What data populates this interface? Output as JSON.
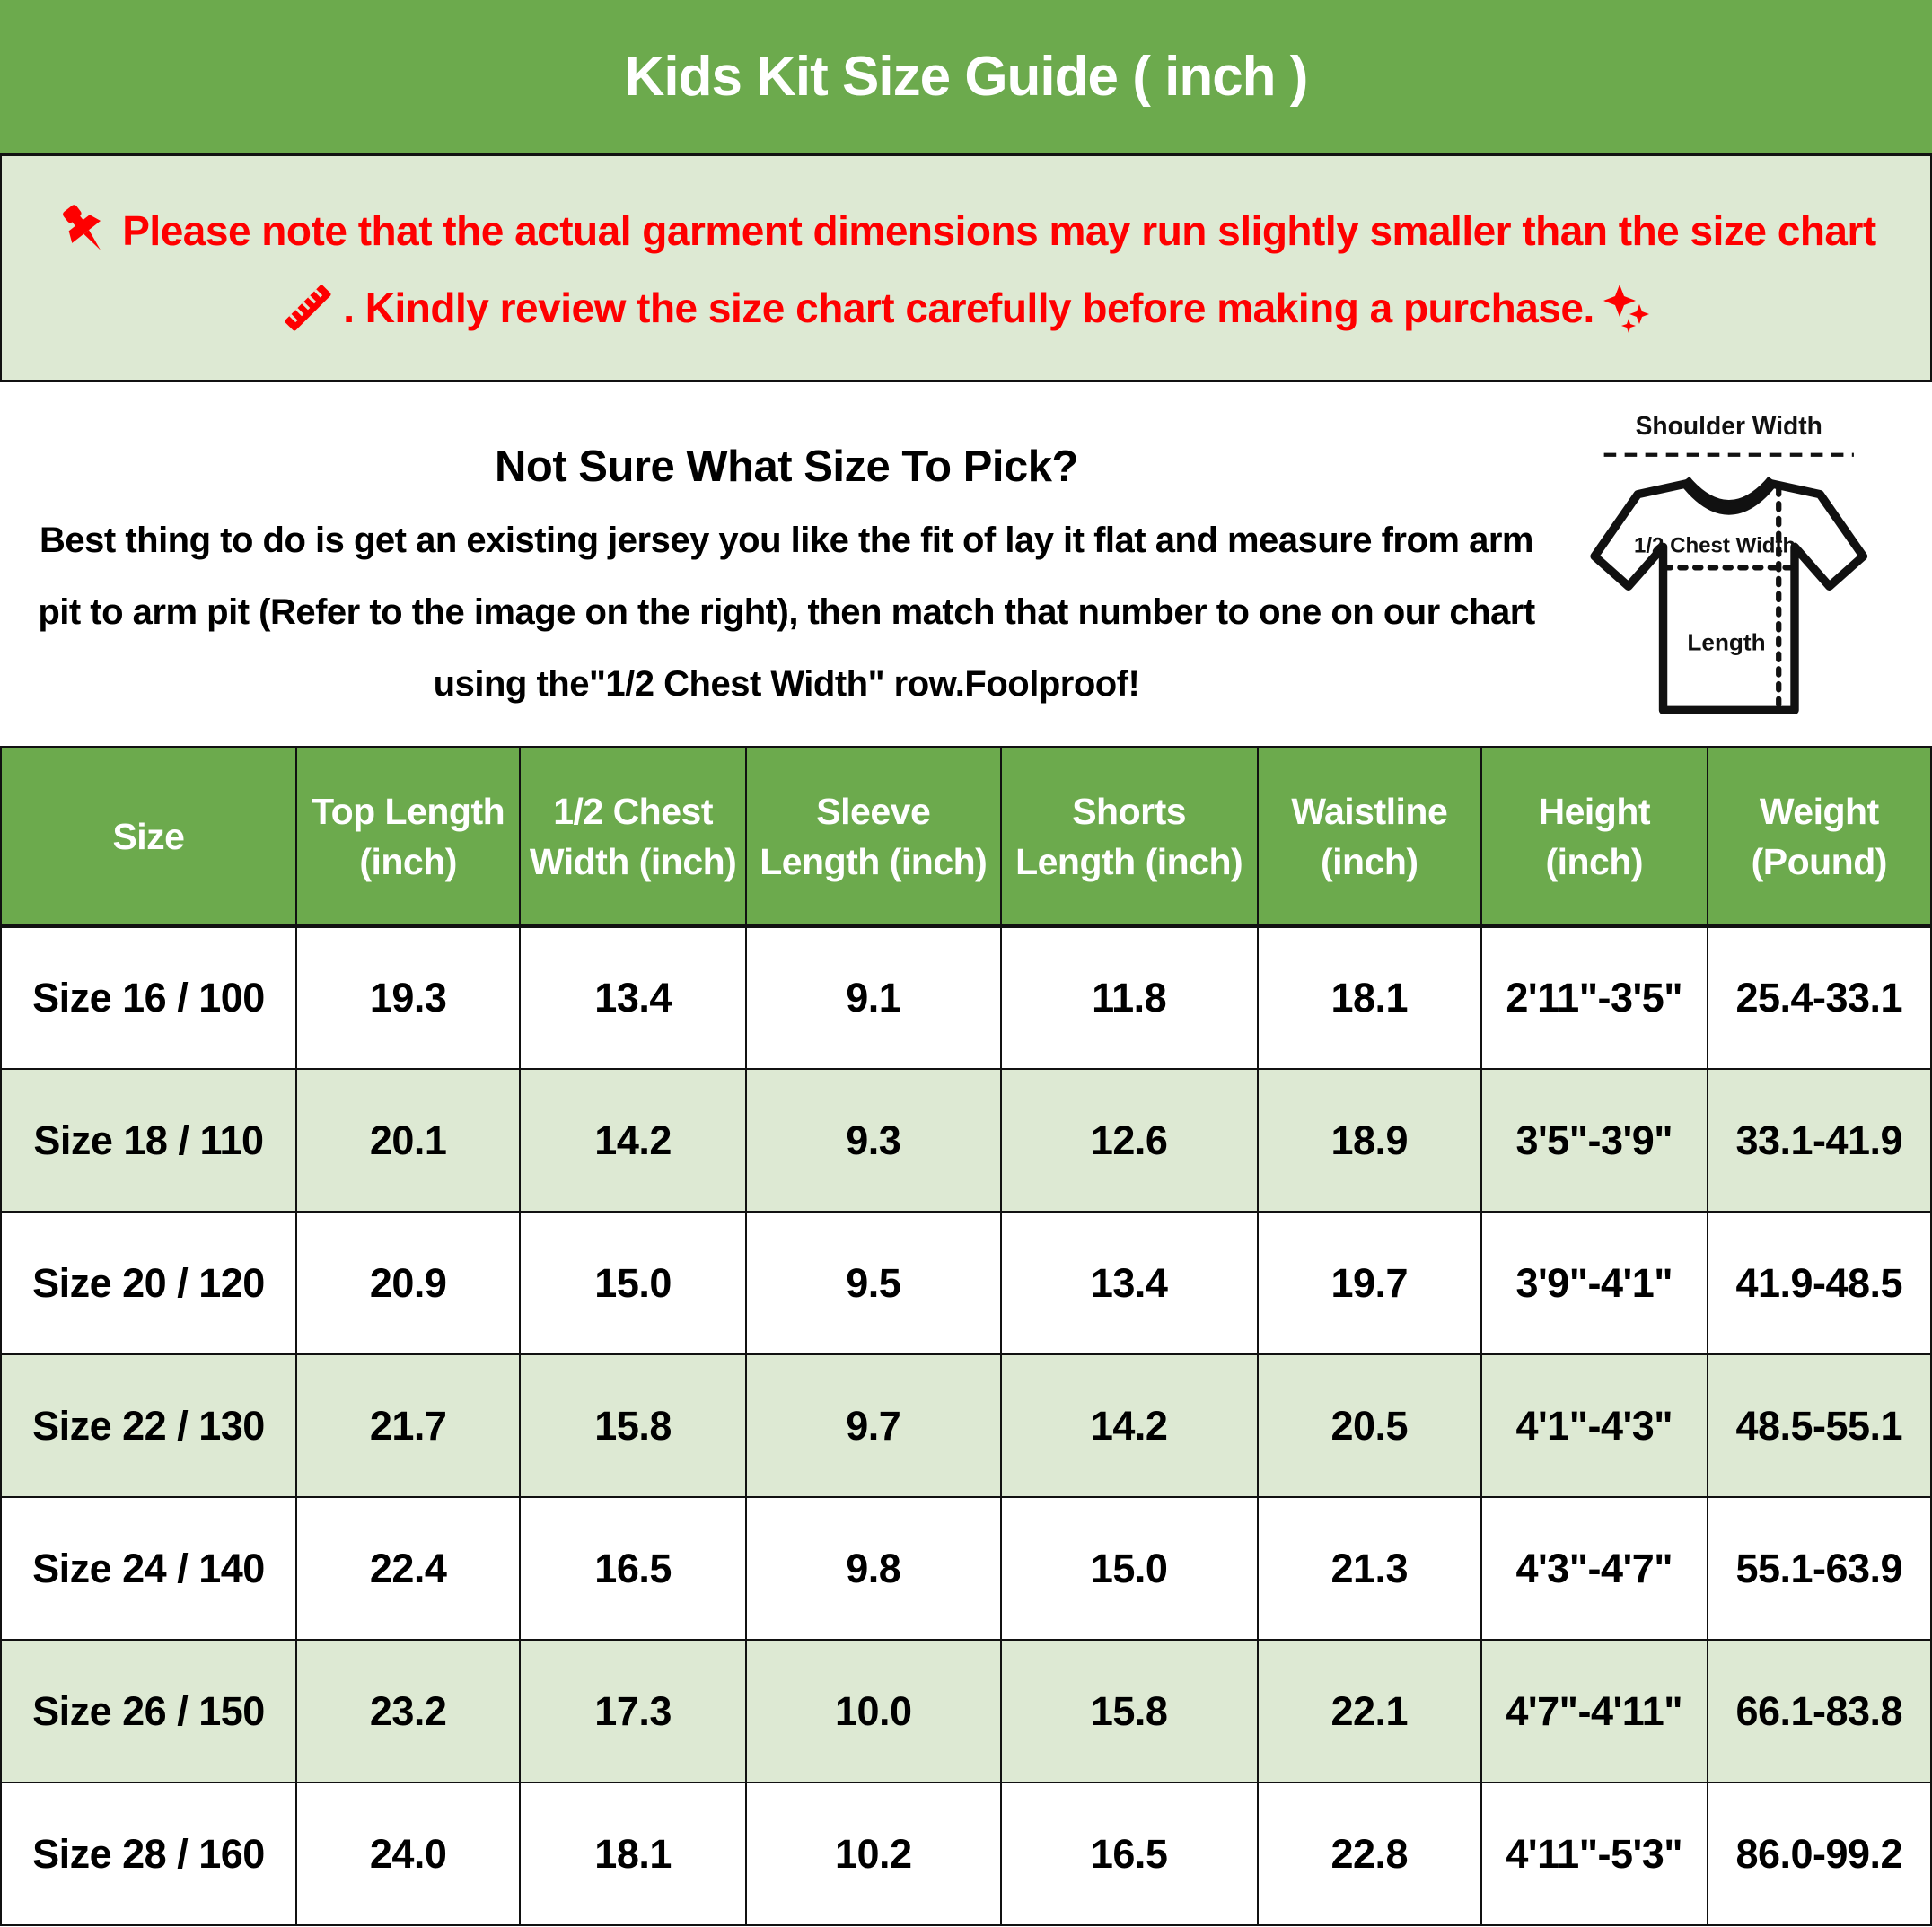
{
  "title": "Kids Kit Size Guide ( inch )",
  "notice": {
    "line1": "Please note that the actual garment dimensions may run slightly smaller than the size chart",
    "line2": ". Kindly review the size chart carefully before making a purchase.",
    "pin_icon": "pushpin-icon",
    "ruler_icon": "ruler-icon",
    "sparkles_icon": "sparkles-icon"
  },
  "guide": {
    "heading": "Not Sure What Size To Pick?",
    "lines": [
      "Best thing to do is get an existing jersey you like the fit of lay it flat and measure from arm",
      "pit to arm pit (Refer to the image on the right), then match that number to one on our chart",
      "using the\"1/2 Chest Width\" row.Foolproof!"
    ]
  },
  "diagram": {
    "shoulder_label": "Shoulder Width",
    "chest_label": "1/2 Chest Width",
    "length_label": "Length"
  },
  "table": {
    "headers": [
      [
        "Size"
      ],
      [
        "Top Length",
        "(inch)"
      ],
      [
        "1/2 Chest",
        "Width (inch)"
      ],
      [
        "Sleeve",
        "Length (inch)"
      ],
      [
        "Shorts",
        "Length (inch)"
      ],
      [
        "Waistline",
        "(inch)"
      ],
      [
        "Height",
        "(inch)"
      ],
      [
        "Weight",
        "(Pound)"
      ]
    ],
    "rows": [
      [
        "Size 16 / 100",
        "19.3",
        "13.4",
        "9.1",
        "11.8",
        "18.1",
        "2'11\"-3'5\"",
        "25.4-33.1"
      ],
      [
        "Size 18 / 110",
        "20.1",
        "14.2",
        "9.3",
        "12.6",
        "18.9",
        "3'5\"-3'9\"",
        "33.1-41.9"
      ],
      [
        "Size 20 / 120",
        "20.9",
        "15.0",
        "9.5",
        "13.4",
        "19.7",
        "3'9\"-4'1\"",
        "41.9-48.5"
      ],
      [
        "Size 22 / 130",
        "21.7",
        "15.8",
        "9.7",
        "14.2",
        "20.5",
        "4'1\"-4'3\"",
        "48.5-55.1"
      ],
      [
        "Size 24 / 140",
        "22.4",
        "16.5",
        "9.8",
        "15.0",
        "21.3",
        "4'3\"-4'7\"",
        "55.1-63.9"
      ],
      [
        "Size 26 / 150",
        "23.2",
        "17.3",
        "10.0",
        "15.8",
        "22.1",
        "4'7\"-4'11\"",
        "66.1-83.8"
      ],
      [
        "Size 28 / 160",
        "24.0",
        "18.1",
        "10.2",
        "16.5",
        "22.8",
        "4'11\"-5'3\"",
        "86.0-99.2"
      ]
    ]
  },
  "colors": {
    "header_green": "#6caa4d",
    "light_green": "#dde9d3",
    "notice_red": "#fe0000",
    "grid_black": "#111111"
  }
}
